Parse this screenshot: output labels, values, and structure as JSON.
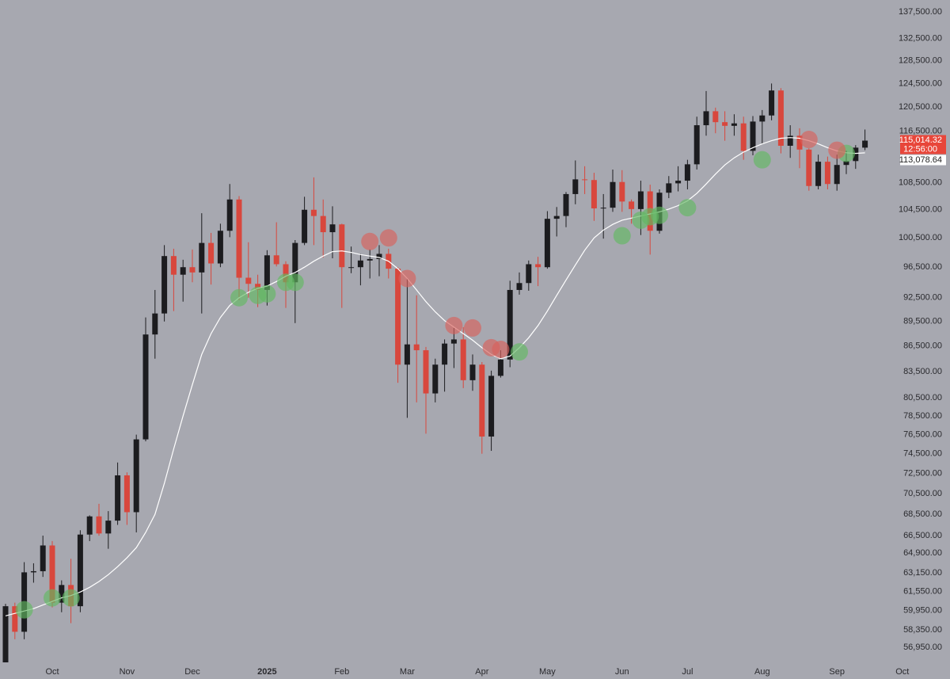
{
  "chart_data": {
    "type": "candlestick",
    "log": true,
    "up_color": "#1c1c1f",
    "down_color": "#d8473d",
    "ma_color": "#ffffff",
    "countdown": "12:56:00",
    "ylim": [
      54510,
      139785
    ],
    "yticks": [
      {
        "value": 137500,
        "label": "137,500.00"
      },
      {
        "value": 132500,
        "label": "132,500.00"
      },
      {
        "value": 128500,
        "label": "128,500.00"
      },
      {
        "value": 124500,
        "label": "124,500.00"
      },
      {
        "value": 120500,
        "label": "120,500.00"
      },
      {
        "value": 116500,
        "label": "116,500.00"
      },
      {
        "value": 108500,
        "label": "108,500.00"
      },
      {
        "value": 104500,
        "label": "104,500.00"
      },
      {
        "value": 100500,
        "label": "100,500.00"
      },
      {
        "value": 96500,
        "label": "96,500.00"
      },
      {
        "value": 92500,
        "label": "92,500.00"
      },
      {
        "value": 89500,
        "label": "89,500.00"
      },
      {
        "value": 86500,
        "label": "86,500.00"
      },
      {
        "value": 83500,
        "label": "83,500.00"
      },
      {
        "value": 80500,
        "label": "80,500.00"
      },
      {
        "value": 78500,
        "label": "78,500.00"
      },
      {
        "value": 76500,
        "label": "76,500.00"
      },
      {
        "value": 74500,
        "label": "74,500.00"
      },
      {
        "value": 72500,
        "label": "72,500.00"
      },
      {
        "value": 70500,
        "label": "70,500.00"
      },
      {
        "value": 68500,
        "label": "68,500.00"
      },
      {
        "value": 66500,
        "label": "66,500.00"
      },
      {
        "value": 64900,
        "label": "64,900.00"
      },
      {
        "value": 63150,
        "label": "63,150.00"
      },
      {
        "value": 61550,
        "label": "61,550.00"
      },
      {
        "value": 59950,
        "label": "59,950.00"
      },
      {
        "value": 58350,
        "label": "58,350.00"
      },
      {
        "value": 56950,
        "label": "56,950.00"
      }
    ],
    "categories": [
      null,
      null,
      null,
      null,
      null,
      "Oct",
      null,
      null,
      null,
      null,
      null,
      null,
      null,
      "Nov",
      null,
      null,
      null,
      null,
      null,
      null,
      "Dec",
      null,
      null,
      null,
      null,
      null,
      null,
      null,
      "2025",
      null,
      null,
      null,
      null,
      null,
      null,
      null,
      "Feb",
      null,
      null,
      null,
      null,
      null,
      null,
      "Mar",
      null,
      null,
      null,
      null,
      null,
      null,
      null,
      "Apr",
      null,
      null,
      null,
      null,
      null,
      null,
      "May",
      null,
      null,
      null,
      null,
      null,
      null,
      null,
      "Jun",
      null,
      null,
      null,
      null,
      null,
      null,
      "Jul",
      null,
      null,
      null,
      null,
      null,
      null,
      null,
      "Aug",
      null,
      null,
      null,
      null,
      null,
      null,
      null,
      "Sep",
      null,
      null,
      null,
      null,
      null,
      null,
      "Oct"
    ],
    "open": [
      55000,
      60300,
      58200,
      63200,
      63300,
      65600,
      60600,
      62100,
      60300,
      66600,
      68300,
      66700,
      67900,
      72300,
      68700,
      76000,
      87900,
      90500,
      98000,
      95500,
      96500,
      95800,
      99800,
      97000,
      101500,
      106000,
      95100,
      94300,
      93500,
      98100,
      96900,
      94500,
      99800,
      104500,
      103600,
      101300,
      102400,
      96500,
      96500,
      97400,
      97600,
      98300,
      96300,
      84300,
      86700,
      86000,
      81000,
      84300,
      86800,
      87300,
      82500,
      84300,
      76300,
      83000,
      84900,
      93500,
      94400,
      96900,
      96500,
      103200,
      103600,
      106800,
      109000,
      108900,
      104700,
      104800,
      108600,
      105700,
      104600,
      107200,
      101500,
      107000,
      108400,
      108800,
      111300,
      117500,
      119800,
      118000,
      117400,
      117800,
      113400,
      118100,
      119100,
      123300,
      114200,
      115800,
      113600,
      108000,
      111700,
      108300,
      111200,
      111800,
      113900,
      null,
      null,
      null,
      null
    ],
    "high": [
      60500,
      60600,
      64100,
      64000,
      66500,
      66000,
      62500,
      64400,
      67000,
      68400,
      69500,
      68800,
      73600,
      72600,
      76500,
      90000,
      93500,
      99500,
      99000,
      97500,
      98900,
      104000,
      101200,
      102500,
      108300,
      106500,
      99900,
      95500,
      98800,
      102700,
      97300,
      100200,
      106400,
      109300,
      106000,
      105000,
      102500,
      99300,
      98300,
      98900,
      99500,
      99000,
      96500,
      95000,
      92800,
      86400,
      85000,
      87300,
      88700,
      88800,
      85500,
      84600,
      83600,
      86000,
      94700,
      95800,
      97400,
      97900,
      104300,
      104900,
      107100,
      111900,
      111000,
      110000,
      106800,
      110500,
      110400,
      106000,
      108800,
      108200,
      107500,
      109500,
      111000,
      112000,
      118900,
      123200,
      120400,
      119800,
      119300,
      118900,
      119000,
      120000,
      124500,
      123700,
      117500,
      117000,
      113800,
      112800,
      112500,
      112800,
      113400,
      114300,
      116800,
      null,
      null,
      null,
      null
    ],
    "low": [
      54600,
      57600,
      57600,
      62300,
      62800,
      60200,
      59800,
      58900,
      59800,
      66000,
      66500,
      65300,
      67500,
      67500,
      66800,
      75800,
      85000,
      89500,
      90800,
      92000,
      94500,
      90500,
      94200,
      96500,
      100600,
      92200,
      92500,
      91300,
      91500,
      96600,
      91200,
      89300,
      99500,
      99500,
      97800,
      97700,
      91200,
      95700,
      94100,
      95000,
      95300,
      95000,
      82200,
      78300,
      80000,
      76600,
      80000,
      81200,
      83900,
      81600,
      81300,
      74500,
      74800,
      82800,
      84000,
      92900,
      93400,
      94000,
      96300,
      100700,
      102000,
      105300,
      106800,
      102900,
      100400,
      104200,
      104200,
      102500,
      100900,
      98200,
      101100,
      106200,
      107200,
      107500,
      110500,
      115800,
      116200,
      115000,
      115800,
      112000,
      112700,
      114500,
      118300,
      113000,
      112300,
      110700,
      107300,
      107500,
      107500,
      107300,
      109800,
      110600,
      113500,
      null,
      null,
      null,
      null
    ],
    "close": [
      60300,
      58200,
      63200,
      63300,
      65600,
      60600,
      62100,
      60300,
      66600,
      68300,
      66700,
      67900,
      72300,
      68700,
      76000,
      87900,
      90500,
      98000,
      95500,
      96500,
      95800,
      99800,
      97000,
      101500,
      106000,
      95100,
      94300,
      93500,
      98100,
      96900,
      94500,
      99800,
      104500,
      103600,
      101300,
      102400,
      96500,
      96500,
      97400,
      97600,
      98300,
      96300,
      84300,
      86700,
      86000,
      81000,
      84300,
      86800,
      87300,
      82500,
      84300,
      76300,
      83000,
      84900,
      93500,
      94400,
      96900,
      96500,
      103200,
      103600,
      106800,
      109000,
      108900,
      104700,
      104800,
      108600,
      105700,
      104600,
      107200,
      101500,
      107000,
      108400,
      108800,
      111300,
      117500,
      119800,
      118000,
      117400,
      117800,
      113400,
      118100,
      119100,
      123300,
      114200,
      115800,
      113600,
      108000,
      111700,
      108300,
      111200,
      111800,
      113900,
      115014.32,
      null,
      null,
      null,
      null
    ],
    "ma": [
      59500,
      59700,
      59900,
      60100,
      60400,
      60700,
      61000,
      61200,
      61500,
      61900,
      62400,
      63000,
      63700,
      64500,
      65400,
      66800,
      68500,
      71500,
      75000,
      78500,
      82000,
      85500,
      88000,
      90000,
      91500,
      92500,
      93200,
      93700,
      94000,
      94600,
      95300,
      95800,
      96500,
      97300,
      98000,
      98600,
      98700,
      98500,
      98200,
      98000,
      97800,
      97300,
      96300,
      95000,
      93500,
      92000,
      90700,
      89600,
      88800,
      88000,
      87200,
      86300,
      85500,
      85000,
      85300,
      86300,
      87500,
      89000,
      90800,
      92800,
      94800,
      96800,
      98800,
      100500,
      101600,
      102400,
      103000,
      103300,
      103600,
      103900,
      104200,
      104600,
      105100,
      105800,
      106900,
      108300,
      109800,
      111200,
      112300,
      113200,
      113900,
      114500,
      115000,
      115400,
      115500,
      115400,
      115000,
      114500,
      113900,
      113400,
      113100,
      113000,
      113078.64,
      null,
      null,
      null,
      null
    ],
    "markers": [
      {
        "color": "#62b862",
        "at": [
          2,
          5,
          7,
          25,
          27,
          28,
          30,
          31,
          55,
          66,
          68,
          69,
          70,
          73,
          81,
          90
        ],
        "values": [
          60000,
          61000,
          61000,
          92500,
          92800,
          93000,
          94500,
          94500,
          85800,
          100800,
          103000,
          103500,
          103700,
          104800,
          112000,
          113000
        ]
      },
      {
        "color": "#d9615c",
        "at": [
          39,
          41,
          43,
          48,
          50,
          52,
          53,
          86,
          89
        ],
        "values": [
          100000,
          100500,
          95000,
          89000,
          88700,
          86300,
          86100,
          115200,
          113500
        ]
      }
    ],
    "price_tags": [
      {
        "value": 115014.32,
        "label": "115,014.32",
        "color": "#e8463a"
      },
      {
        "value": 113078.64,
        "label": "113,078.64",
        "color": "#ffffff"
      }
    ]
  }
}
